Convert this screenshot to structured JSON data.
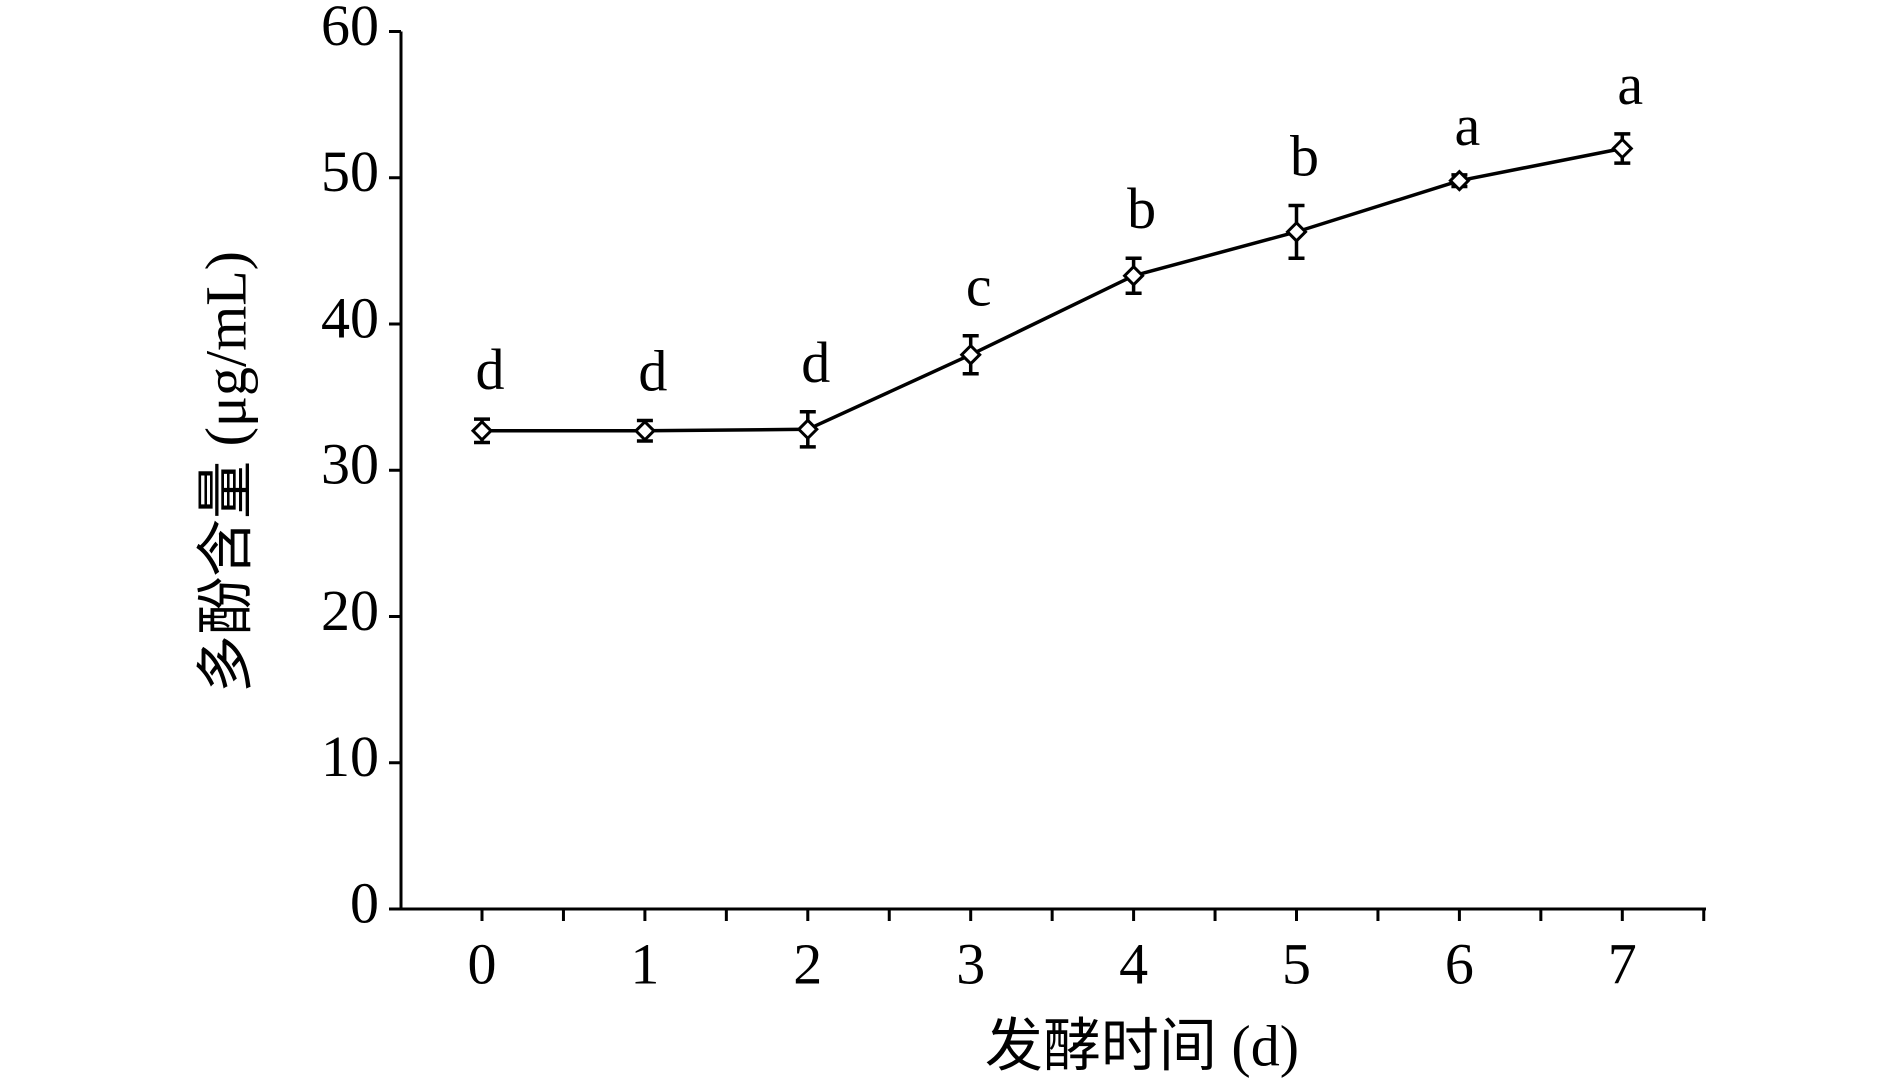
{
  "chart_data": {
    "type": "line",
    "x_label": "发酵时间 (d)",
    "y_label": "多酚含量 (μg/mL)",
    "categories": [
      "0",
      "1",
      "2",
      "3",
      "4",
      "5",
      "6",
      "7"
    ],
    "series": [
      {
        "color": "#000000",
        "values": [
          32.7,
          32.7,
          32.8,
          37.9,
          43.3,
          46.3,
          49.8,
          52.0
        ],
        "errors": [
          0.8,
          0.7,
          1.2,
          1.3,
          1.2,
          1.8,
          0.4,
          1.0
        ],
        "group_labels": [
          "d",
          "d",
          "d",
          "c",
          "b",
          "b",
          "a",
          "a"
        ]
      }
    ],
    "ylim": [
      0,
      60
    ],
    "yticks": [
      0,
      10,
      20,
      30,
      40,
      50,
      60
    ]
  }
}
